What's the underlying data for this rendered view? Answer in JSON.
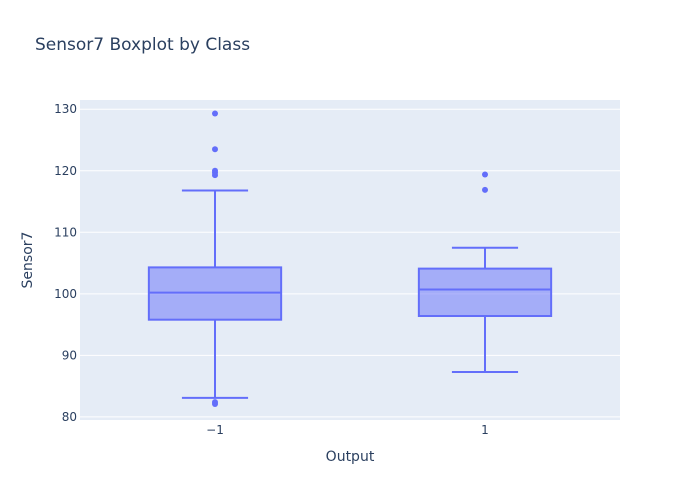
{
  "chart_data": {
    "type": "box",
    "title": "Sensor7 Boxplot by Class",
    "xlabel": "Output",
    "ylabel": "Sensor7",
    "categories": [
      "−1",
      "1"
    ],
    "ylim": [
      79.5,
      131.5
    ],
    "yticks": [
      80,
      90,
      100,
      110,
      120,
      130
    ],
    "grid": true,
    "legend": "none",
    "colors": {
      "box_fill": "rgba(99,110,250,0.5)",
      "box_line": "#636efa",
      "plot_bg": "#e5ecf6",
      "grid": "#ffffff",
      "text": "#2a3f5f"
    },
    "boxes": [
      {
        "category": "−1",
        "q1": 95.8,
        "median": 100.2,
        "q3": 104.3,
        "whisker_low": 83.1,
        "whisker_high": 116.8,
        "outliers": [
          129.3,
          123.5,
          120.0,
          119.7,
          119.3,
          82.4,
          82.1
        ]
      },
      {
        "category": "1",
        "q1": 96.4,
        "median": 100.7,
        "q3": 104.1,
        "whisker_low": 87.3,
        "whisker_high": 107.5,
        "outliers": [
          119.4,
          116.9
        ]
      }
    ]
  }
}
